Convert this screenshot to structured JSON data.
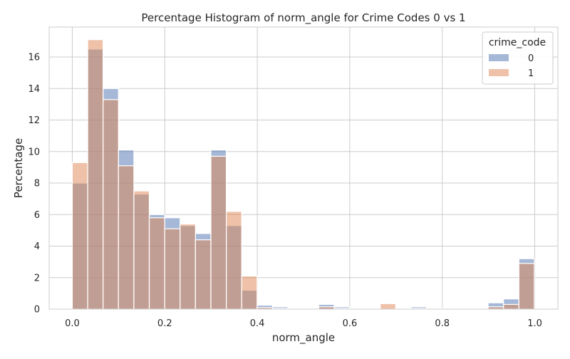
{
  "chart_data": {
    "type": "bar",
    "title": "Percentage Histogram of norm_angle for Crime Codes 0 vs 1",
    "xlabel": "norm_angle",
    "ylabel": "Percentage",
    "xlim": [
      -0.05,
      1.05
    ],
    "ylim": [
      0,
      17.9
    ],
    "xticks": [
      0.0,
      0.2,
      0.4,
      0.6,
      0.8,
      1.0
    ],
    "xtick_labels": [
      "0.0",
      "0.2",
      "0.4",
      "0.6",
      "0.8",
      "1.0"
    ],
    "yticks": [
      0,
      2,
      4,
      6,
      8,
      10,
      12,
      14,
      16
    ],
    "ytick_labels": [
      "0",
      "2",
      "4",
      "6",
      "8",
      "10",
      "12",
      "14",
      "16"
    ],
    "grid": true,
    "legend": {
      "title": "crime_code",
      "position": "top-right"
    },
    "bin_width": 0.0333,
    "bin_edges_start": 0.0,
    "series": [
      {
        "name": "0",
        "color": "#4c72b0",
        "values": [
          8.0,
          16.5,
          14.0,
          10.1,
          7.3,
          6.0,
          5.8,
          5.3,
          4.8,
          10.1,
          5.3,
          1.2,
          0.25,
          0.15,
          0.05,
          0.05,
          0.3,
          0.15,
          0.05,
          0.05,
          0.05,
          0.05,
          0.15,
          0.05,
          0.05,
          0.05,
          0.05,
          0.4,
          0.65,
          3.2
        ]
      },
      {
        "name": "1",
        "color": "#dd8452",
        "values": [
          9.3,
          17.1,
          13.3,
          9.1,
          7.5,
          5.8,
          5.1,
          5.4,
          4.4,
          9.7,
          6.2,
          2.1,
          0.1,
          0.05,
          0.05,
          0.05,
          0.15,
          0.05,
          0.05,
          0.05,
          0.35,
          0.05,
          0.05,
          0.05,
          0.05,
          0.05,
          0.05,
          0.15,
          0.3,
          2.9
        ]
      }
    ]
  }
}
